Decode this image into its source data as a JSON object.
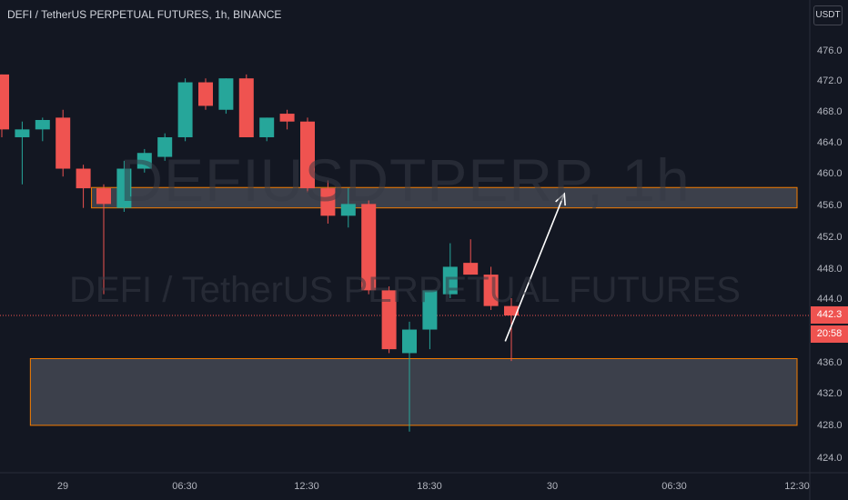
{
  "header": {
    "title": "DEFI / TetherUS PERPETUAL FUTURES, 1h, BINANCE",
    "currency": "USDT"
  },
  "watermark": {
    "symbol": "DEFIUSDTPERP, 1h",
    "description": "DEFI / TetherUS PERPETUAL FUTURES"
  },
  "price_axis": {
    "labels": [
      "476.0",
      "472.0",
      "468.0",
      "464.0",
      "460.0",
      "456.0",
      "452.0",
      "448.0",
      "444.0",
      "436.0",
      "432.0",
      "428.0",
      "424.0"
    ],
    "current_price": "442.3",
    "countdown": "20:58"
  },
  "time_axis": {
    "labels": [
      "29",
      "06:30",
      "12:30",
      "18:30",
      "30",
      "06:30",
      "12:30"
    ]
  },
  "colors": {
    "bull": "#26a69a",
    "bear": "#ef5350",
    "zone_border": "#f57c00",
    "zone_fill": "#4b4f5a",
    "arrow": "#ffffff"
  },
  "chart_data": {
    "type": "candlestick",
    "interval": "1h",
    "ylim": [
      423,
      479
    ],
    "candles": [
      {
        "o": 473.0,
        "h": 473.0,
        "l": 465.0,
        "c": 466.0
      },
      {
        "o": 465.0,
        "h": 467.0,
        "l": 459.0,
        "c": 466.0
      },
      {
        "o": 466.0,
        "h": 467.5,
        "l": 464.5,
        "c": 467.2
      },
      {
        "o": 467.5,
        "h": 468.5,
        "l": 460.0,
        "c": 461.0
      },
      {
        "o": 461.0,
        "h": 461.5,
        "l": 456.0,
        "c": 458.5
      },
      {
        "o": 458.5,
        "h": 459.0,
        "l": 445.0,
        "c": 456.5
      },
      {
        "o": 456.0,
        "h": 462.0,
        "l": 455.5,
        "c": 461.0
      },
      {
        "o": 461.0,
        "h": 463.5,
        "l": 460.5,
        "c": 463.0
      },
      {
        "o": 462.5,
        "h": 465.5,
        "l": 462.0,
        "c": 465.0
      },
      {
        "o": 465.0,
        "h": 472.5,
        "l": 464.5,
        "c": 472.0
      },
      {
        "o": 472.0,
        "h": 472.5,
        "l": 468.5,
        "c": 469.0
      },
      {
        "o": 468.5,
        "h": 472.5,
        "l": 468.0,
        "c": 472.5
      },
      {
        "o": 472.5,
        "h": 473.0,
        "l": 465.0,
        "c": 465.0
      },
      {
        "o": 465.0,
        "h": 467.5,
        "l": 464.5,
        "c": 467.5
      },
      {
        "o": 468.0,
        "h": 468.5,
        "l": 466.0,
        "c": 467.0
      },
      {
        "o": 467.0,
        "h": 467.5,
        "l": 458.0,
        "c": 458.5
      },
      {
        "o": 458.5,
        "h": 459.5,
        "l": 454.0,
        "c": 455.0
      },
      {
        "o": 455.0,
        "h": 458.5,
        "l": 453.5,
        "c": 456.5
      },
      {
        "o": 456.5,
        "h": 457.0,
        "l": 445.0,
        "c": 445.5
      },
      {
        "o": 445.5,
        "h": 446.0,
        "l": 437.5,
        "c": 438.0
      },
      {
        "o": 437.5,
        "h": 441.5,
        "l": 427.5,
        "c": 440.5
      },
      {
        "o": 440.5,
        "h": 445.5,
        "l": 438.0,
        "c": 445.5
      },
      {
        "o": 445.0,
        "h": 451.5,
        "l": 444.5,
        "c": 448.5
      },
      {
        "o": 449.0,
        "h": 452.0,
        "l": 447.5,
        "c": 447.5
      },
      {
        "o": 447.5,
        "h": 448.5,
        "l": 443.0,
        "c": 443.5
      },
      {
        "o": 443.5,
        "h": 444.5,
        "l": 436.5,
        "c": 442.3
      }
    ],
    "zones": [
      {
        "from": 456.0,
        "to": 458.6,
        "start_index": 4.4,
        "end_index": 35
      },
      {
        "from": 428.3,
        "to": 436.8,
        "start_index": 1.4,
        "end_index": 35
      }
    ],
    "arrow": {
      "from_index": 24.7,
      "from_price": 439.0,
      "to_index": 27.6,
      "to_price": 457.8
    }
  }
}
